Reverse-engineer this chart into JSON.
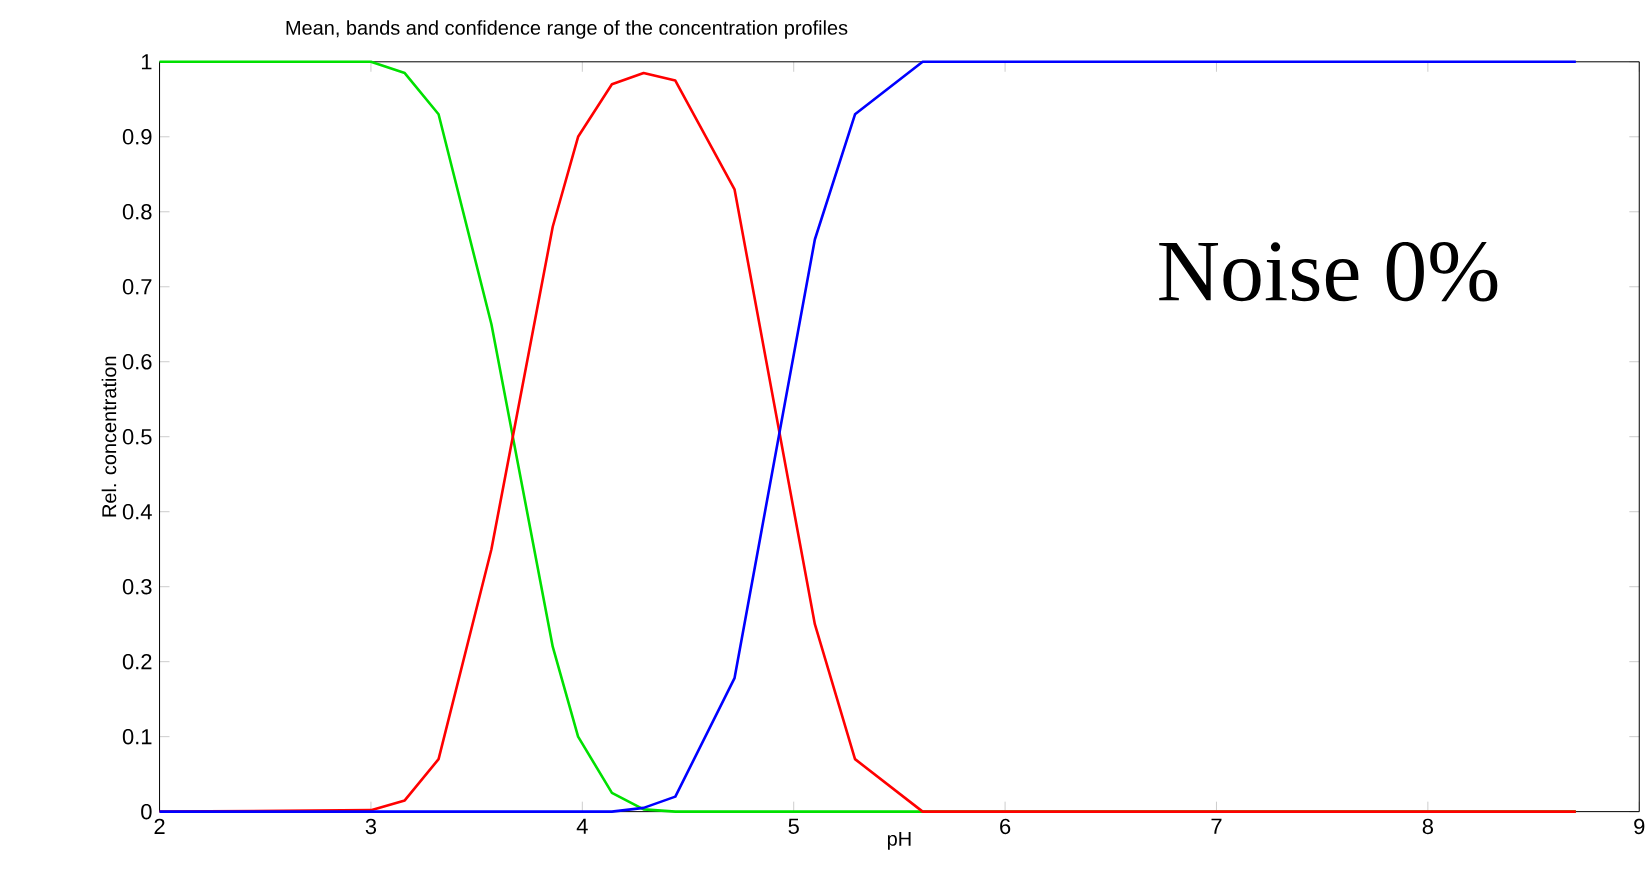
{
  "chart_data": {
    "type": "line",
    "title": "Mean, bands and confidence range of the concentration profiles",
    "xlabel": "pH",
    "ylabel": "Rel. concentration",
    "annotations": [
      "Noise 0%"
    ],
    "xlim": [
      2,
      9
    ],
    "ylim": [
      0,
      1
    ],
    "xticks": [
      2,
      3,
      4,
      5,
      6,
      7,
      8,
      9
    ],
    "yticks": [
      0,
      0.1,
      0.2,
      0.3,
      0.4,
      0.5,
      0.6,
      0.7,
      0.8,
      0.9,
      1
    ],
    "marker": "none",
    "line_style": "solid",
    "series": [
      {
        "color": "#00e000",
        "x": [
          2,
          3,
          3.16,
          3.32,
          3.57,
          3.86,
          3.98,
          4.14,
          4.29,
          4.44,
          8.7
        ],
        "values": [
          1,
          1,
          0.985,
          0.93,
          0.65,
          0.22,
          0.1,
          0.025,
          0.003,
          0,
          0
        ]
      },
      {
        "color": "#ff0000",
        "x": [
          2,
          3,
          3.16,
          3.32,
          3.57,
          3.86,
          3.98,
          4.14,
          4.29,
          4.44,
          4.72,
          5.1,
          5.29,
          5.61,
          8.7
        ],
        "values": [
          0,
          0.002,
          0.015,
          0.07,
          0.35,
          0.78,
          0.9,
          0.97,
          0.985,
          0.975,
          0.83,
          0.25,
          0.07,
          0,
          0
        ]
      },
      {
        "color": "#0000ff",
        "x": [
          2,
          4.14,
          4.29,
          4.44,
          4.72,
          5.1,
          5.29,
          5.61,
          8.7
        ],
        "values": [
          0,
          0,
          0.005,
          0.02,
          0.178,
          0.763,
          0.93,
          1,
          1
        ]
      }
    ]
  }
}
